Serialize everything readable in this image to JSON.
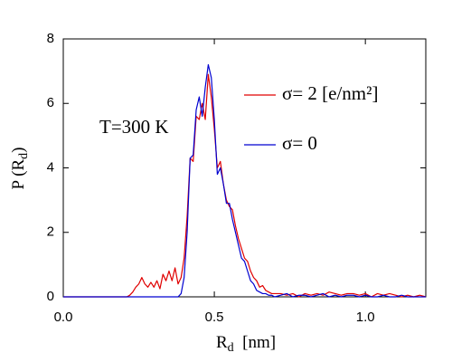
{
  "chart_data": {
    "type": "line",
    "ylabel": [
      "P (R",
      "d",
      ")"
    ],
    "xlabel": [
      "R",
      "d",
      "  [nm]"
    ],
    "annotation": "T=300 K",
    "x": [
      0,
      0.1,
      0.2,
      0.21,
      0.22,
      0.23,
      0.24,
      0.25,
      0.26,
      0.27,
      0.28,
      0.29,
      0.3,
      0.31,
      0.32,
      0.33,
      0.34,
      0.35,
      0.36,
      0.37,
      0.38,
      0.39,
      0.4,
      0.41,
      0.42,
      0.43,
      0.44,
      0.45,
      0.46,
      0.47,
      0.48,
      0.49,
      0.5,
      0.51,
      0.52,
      0.53,
      0.54,
      0.55,
      0.56,
      0.57,
      0.58,
      0.59,
      0.6,
      0.61,
      0.62,
      0.63,
      0.64,
      0.65,
      0.66,
      0.67,
      0.68,
      0.69,
      0.7,
      0.72,
      0.74,
      0.76,
      0.78,
      0.8,
      0.82,
      0.84,
      0.86,
      0.88,
      0.9,
      0.92,
      0.94,
      0.96,
      0.98,
      1.0,
      1.02,
      1.04,
      1.06,
      1.08,
      1.1,
      1.12,
      1.14,
      1.16,
      1.18,
      1.2
    ],
    "series": [
      {
        "name": "σ= 2  [e/nm²]",
        "color": "#e00000",
        "values": [
          0,
          0,
          0,
          0,
          0.05,
          0.15,
          0.3,
          0.4,
          0.6,
          0.4,
          0.3,
          0.45,
          0.3,
          0.5,
          0.25,
          0.7,
          0.5,
          0.8,
          0.5,
          0.9,
          0.4,
          0.6,
          1.2,
          2.5,
          4.3,
          4.2,
          5.6,
          5.5,
          6.0,
          5.5,
          6.9,
          6.2,
          5.2,
          4.0,
          4.2,
          3.5,
          3.0,
          2.8,
          2.7,
          2.2,
          1.8,
          1.5,
          1.2,
          1.1,
          0.8,
          0.6,
          0.5,
          0.3,
          0.35,
          0.2,
          0.15,
          0.1,
          0.1,
          0.1,
          0.05,
          0.1,
          0,
          0.1,
          0.05,
          0.1,
          0.05,
          0.15,
          0.1,
          0.05,
          0.1,
          0.1,
          0.05,
          0.1,
          0,
          0.1,
          0.05,
          0.1,
          0.05,
          0,
          0.05,
          0,
          0.05,
          0
        ]
      },
      {
        "name": "σ= 0",
        "color": "#0000d0",
        "values": [
          0,
          0,
          0,
          0,
          0,
          0,
          0,
          0,
          0,
          0,
          0,
          0,
          0,
          0,
          0,
          0,
          0,
          0,
          0,
          0,
          0,
          0.1,
          0.6,
          2.0,
          4.3,
          4.4,
          5.8,
          6.2,
          5.6,
          6.5,
          7.2,
          6.8,
          5.5,
          3.8,
          4.0,
          3.5,
          2.9,
          2.9,
          2.4,
          2.0,
          1.6,
          1.2,
          1.1,
          0.8,
          0.5,
          0.4,
          0.2,
          0.15,
          0.1,
          0.1,
          0.05,
          0.05,
          0,
          0.05,
          0.1,
          0,
          0.05,
          0.05,
          0,
          0.05,
          0.1,
          0,
          0.05,
          0,
          0.05,
          0.05,
          0,
          0.05,
          0,
          0,
          0.05,
          0,
          0,
          0.05,
          0,
          0,
          0,
          0
        ]
      }
    ],
    "xlim": [
      0,
      1.2
    ],
    "ylim": [
      0,
      8
    ],
    "xticks": [
      {
        "value": 0,
        "label": "0.0"
      },
      {
        "value": 0.5,
        "label": "0.5"
      },
      {
        "value": 1,
        "label": "1.0"
      }
    ],
    "yticks": [
      0,
      2,
      4,
      6,
      8
    ],
    "grid": false
  }
}
